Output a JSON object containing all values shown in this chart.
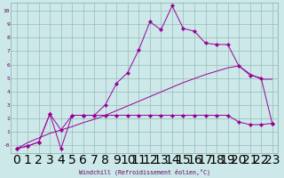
{
  "xlabel": "Windchill (Refroidissement éolien,°C)",
  "bg_color": "#cce8e8",
  "line_color": "#990099",
  "grid_color": "#99bbbb",
  "x_ticks": [
    0,
    1,
    2,
    3,
    4,
    5,
    6,
    7,
    8,
    9,
    10,
    11,
    12,
    13,
    14,
    15,
    16,
    17,
    18,
    19,
    20,
    21,
    22,
    23
  ],
  "y_ticks": [
    0,
    1,
    2,
    3,
    4,
    5,
    6,
    7,
    8,
    9,
    10
  ],
  "y_tick_labels": [
    "-0",
    "1",
    "2",
    "3",
    "4",
    "5",
    "6",
    "7",
    "8",
    "9",
    "10"
  ],
  "xlim": [
    -0.5,
    23.5
  ],
  "ylim": [
    -0.6,
    10.6
  ],
  "series1_x": [
    0,
    1,
    2,
    3,
    4,
    5,
    6,
    7,
    8,
    9,
    10,
    11,
    12,
    13,
    14,
    15,
    16,
    17,
    18,
    19,
    20,
    21,
    22,
    23
  ],
  "series1_y": [
    -0.3,
    -0.1,
    0.2,
    2.3,
    -0.3,
    2.2,
    2.2,
    2.2,
    3.0,
    4.6,
    5.4,
    7.1,
    9.2,
    8.6,
    10.4,
    8.7,
    8.5,
    7.6,
    7.5,
    7.5,
    5.9,
    5.2,
    5.0,
    1.6
  ],
  "series2_x": [
    0,
    1,
    2,
    3,
    4,
    5,
    6,
    7,
    8,
    9,
    10,
    11,
    12,
    13,
    14,
    15,
    16,
    17,
    18,
    19,
    20,
    21,
    22,
    23
  ],
  "series2_y": [
    -0.3,
    -0.1,
    0.2,
    2.3,
    1.1,
    2.2,
    2.2,
    2.2,
    2.2,
    2.2,
    2.2,
    2.2,
    2.2,
    2.2,
    2.2,
    2.2,
    2.2,
    2.2,
    2.2,
    2.2,
    1.7,
    1.5,
    1.5,
    1.6
  ],
  "series3_x": [
    0,
    1,
    2,
    3,
    4,
    5,
    6,
    7,
    8,
    9,
    10,
    11,
    12,
    13,
    14,
    15,
    16,
    17,
    18,
    19,
    20,
    21,
    22,
    23
  ],
  "series3_y": [
    -0.3,
    0.15,
    0.5,
    0.85,
    1.1,
    1.35,
    1.65,
    1.9,
    2.2,
    2.55,
    2.9,
    3.25,
    3.6,
    3.95,
    4.3,
    4.65,
    4.95,
    5.25,
    5.5,
    5.75,
    5.9,
    5.3,
    4.9,
    4.9
  ]
}
